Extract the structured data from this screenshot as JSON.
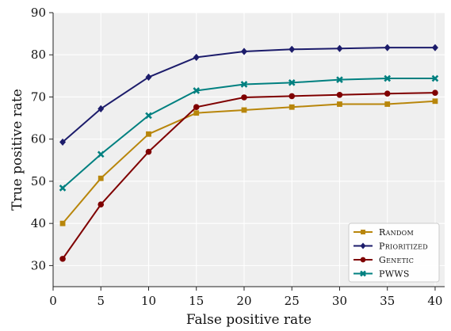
{
  "chart_data": {
    "type": "line",
    "xlabel": "False positive rate",
    "ylabel": "True positive rate",
    "xlim": [
      0,
      41
    ],
    "ylim": [
      25,
      90
    ],
    "xticks": [
      0,
      5,
      10,
      15,
      20,
      25,
      30,
      35,
      40
    ],
    "yticks": [
      30,
      40,
      50,
      60,
      70,
      80,
      90
    ],
    "grid": true,
    "legend_position": "bottom-right",
    "x": [
      1,
      5,
      10,
      15,
      20,
      25,
      30,
      35,
      40
    ],
    "series": [
      {
        "name": "Random",
        "color": "#b8860b",
        "marker": "square",
        "values": [
          40.0,
          50.7,
          61.2,
          66.2,
          66.9,
          67.6,
          68.3,
          68.3,
          69.0
        ]
      },
      {
        "name": "Prioritized",
        "color": "#1c1c6b",
        "marker": "diamond",
        "values": [
          59.3,
          67.2,
          74.7,
          79.4,
          80.8,
          81.3,
          81.5,
          81.7,
          81.7
        ]
      },
      {
        "name": "Genetic",
        "color": "#7f0000",
        "marker": "circle",
        "values": [
          31.6,
          44.5,
          57.0,
          67.6,
          69.9,
          70.2,
          70.5,
          70.8,
          71.0
        ]
      },
      {
        "name": "PWWS",
        "color": "#008080",
        "marker": "x",
        "values": [
          48.4,
          56.4,
          65.6,
          71.5,
          73.0,
          73.4,
          74.1,
          74.4,
          74.4
        ]
      }
    ]
  }
}
